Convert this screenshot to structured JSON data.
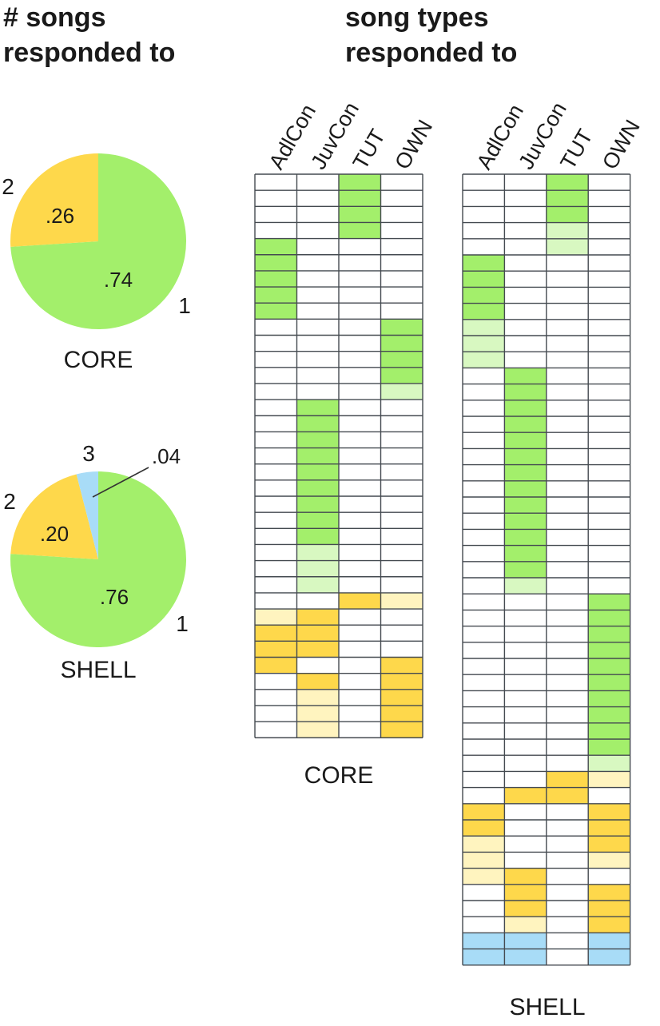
{
  "headings": {
    "left": [
      "# songs",
      "responded to"
    ],
    "right": [
      "song types",
      "responded to"
    ]
  },
  "colors": {
    "green": "#a3ef6b",
    "light_green": "#d8f8c1",
    "yellow": "#fed84b",
    "light_yellow": "#fff4bf",
    "blue": "#a8dcf7",
    "white": "#ffffff",
    "grid": "#444a50"
  },
  "chart_data": [
    {
      "type": "pie",
      "title": "CORE",
      "slices": [
        {
          "label": "1",
          "value": 0.74,
          "value_label": ".74",
          "color": "green"
        },
        {
          "label": "2",
          "value": 0.26,
          "value_label": ".26",
          "color": "yellow"
        }
      ]
    },
    {
      "type": "pie",
      "title": "SHELL",
      "slices": [
        {
          "label": "1",
          "value": 0.76,
          "value_label": ".76",
          "color": "green"
        },
        {
          "label": "2",
          "value": 0.2,
          "value_label": ".20",
          "color": "yellow"
        },
        {
          "label": "3",
          "value": 0.04,
          "value_label": ".04",
          "color": "blue"
        }
      ]
    },
    {
      "type": "heatmap",
      "title": "CORE",
      "columns": [
        "AdlCon",
        "JuvCon",
        "TUT",
        "OWN"
      ],
      "legend_codes": {
        "0": "white",
        "1": "green",
        "2": "light_green",
        "3": "yellow",
        "4": "light_yellow",
        "5": "blue"
      },
      "rows": [
        [
          0,
          0,
          1,
          0
        ],
        [
          0,
          0,
          1,
          0
        ],
        [
          0,
          0,
          1,
          0
        ],
        [
          0,
          0,
          1,
          0
        ],
        [
          1,
          0,
          0,
          0
        ],
        [
          1,
          0,
          0,
          0
        ],
        [
          1,
          0,
          0,
          0
        ],
        [
          1,
          0,
          0,
          0
        ],
        [
          1,
          0,
          0,
          0
        ],
        [
          0,
          0,
          0,
          1
        ],
        [
          0,
          0,
          0,
          1
        ],
        [
          0,
          0,
          0,
          1
        ],
        [
          0,
          0,
          0,
          1
        ],
        [
          0,
          0,
          0,
          2
        ],
        [
          0,
          1,
          0,
          0
        ],
        [
          0,
          1,
          0,
          0
        ],
        [
          0,
          1,
          0,
          0
        ],
        [
          0,
          1,
          0,
          0
        ],
        [
          0,
          1,
          0,
          0
        ],
        [
          0,
          1,
          0,
          0
        ],
        [
          0,
          1,
          0,
          0
        ],
        [
          0,
          1,
          0,
          0
        ],
        [
          0,
          1,
          0,
          0
        ],
        [
          0,
          2,
          0,
          0
        ],
        [
          0,
          2,
          0,
          0
        ],
        [
          0,
          2,
          0,
          0
        ],
        [
          0,
          0,
          3,
          4
        ],
        [
          4,
          3,
          0,
          0
        ],
        [
          3,
          3,
          0,
          0
        ],
        [
          3,
          3,
          0,
          0
        ],
        [
          3,
          0,
          0,
          3
        ],
        [
          0,
          3,
          0,
          3
        ],
        [
          0,
          4,
          0,
          3
        ],
        [
          0,
          4,
          0,
          3
        ],
        [
          0,
          4,
          0,
          3
        ]
      ]
    },
    {
      "type": "heatmap",
      "title": "SHELL",
      "columns": [
        "AdlCon",
        "JuvCon",
        "TUT",
        "OWN"
      ],
      "legend_codes": {
        "0": "white",
        "1": "green",
        "2": "light_green",
        "3": "yellow",
        "4": "light_yellow",
        "5": "blue"
      },
      "rows": [
        [
          0,
          0,
          1,
          0
        ],
        [
          0,
          0,
          1,
          0
        ],
        [
          0,
          0,
          1,
          0
        ],
        [
          0,
          0,
          2,
          0
        ],
        [
          0,
          0,
          2,
          0
        ],
        [
          1,
          0,
          0,
          0
        ],
        [
          1,
          0,
          0,
          0
        ],
        [
          1,
          0,
          0,
          0
        ],
        [
          1,
          0,
          0,
          0
        ],
        [
          2,
          0,
          0,
          0
        ],
        [
          2,
          0,
          0,
          0
        ],
        [
          2,
          0,
          0,
          0
        ],
        [
          0,
          1,
          0,
          0
        ],
        [
          0,
          1,
          0,
          0
        ],
        [
          0,
          1,
          0,
          0
        ],
        [
          0,
          1,
          0,
          0
        ],
        [
          0,
          1,
          0,
          0
        ],
        [
          0,
          1,
          0,
          0
        ],
        [
          0,
          1,
          0,
          0
        ],
        [
          0,
          1,
          0,
          0
        ],
        [
          0,
          1,
          0,
          0
        ],
        [
          0,
          1,
          0,
          0
        ],
        [
          0,
          1,
          0,
          0
        ],
        [
          0,
          1,
          0,
          0
        ],
        [
          0,
          1,
          0,
          0
        ],
        [
          0,
          2,
          0,
          0
        ],
        [
          0,
          0,
          0,
          1
        ],
        [
          0,
          0,
          0,
          1
        ],
        [
          0,
          0,
          0,
          1
        ],
        [
          0,
          0,
          0,
          1
        ],
        [
          0,
          0,
          0,
          1
        ],
        [
          0,
          0,
          0,
          1
        ],
        [
          0,
          0,
          0,
          1
        ],
        [
          0,
          0,
          0,
          1
        ],
        [
          0,
          0,
          0,
          1
        ],
        [
          0,
          0,
          0,
          1
        ],
        [
          0,
          0,
          0,
          2
        ],
        [
          0,
          0,
          3,
          4
        ],
        [
          0,
          3,
          3,
          0
        ],
        [
          3,
          0,
          0,
          3
        ],
        [
          3,
          0,
          0,
          3
        ],
        [
          4,
          0,
          0,
          3
        ],
        [
          4,
          0,
          0,
          4
        ],
        [
          4,
          3,
          0,
          0
        ],
        [
          0,
          3,
          0,
          3
        ],
        [
          0,
          3,
          0,
          3
        ],
        [
          0,
          4,
          0,
          3
        ],
        [
          5,
          5,
          0,
          5
        ],
        [
          5,
          5,
          0,
          5
        ]
      ]
    }
  ]
}
